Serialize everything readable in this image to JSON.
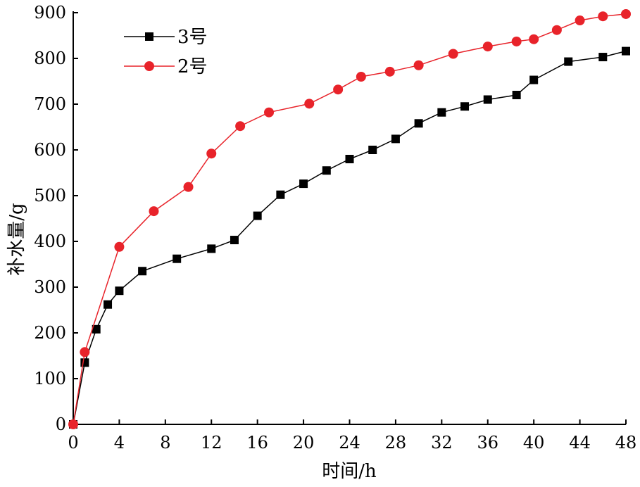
{
  "chart_data": {
    "type": "line",
    "xlabel": "时间/h",
    "ylabel": "补水量/g",
    "xlim": [
      0,
      48
    ],
    "ylim": [
      0,
      900
    ],
    "xticks": [
      0,
      4,
      8,
      12,
      16,
      20,
      24,
      28,
      32,
      36,
      40,
      44,
      48
    ],
    "yticks": [
      0,
      100,
      200,
      300,
      400,
      500,
      600,
      700,
      800,
      900
    ],
    "grid": false,
    "legend": "top-left",
    "series": [
      {
        "name": "3号",
        "color": "#000000",
        "marker": "square",
        "x": [
          0,
          1,
          2,
          3,
          4,
          6,
          9,
          12,
          14,
          16,
          18,
          20,
          22,
          24,
          26,
          28,
          30,
          32,
          34,
          36,
          38.5,
          40,
          43,
          46,
          48
        ],
        "y": [
          0,
          135,
          208,
          262,
          292,
          335,
          362,
          384,
          403,
          456,
          502,
          526,
          555,
          580,
          600,
          624,
          658,
          682,
          695,
          710,
          720,
          753,
          793,
          803,
          816
        ]
      },
      {
        "name": "2号",
        "color": "#e8232a",
        "marker": "circle",
        "x": [
          0,
          1,
          4,
          7,
          10,
          12,
          14.5,
          17,
          20.5,
          23,
          25,
          27.5,
          30,
          33,
          36,
          38.5,
          40,
          42,
          44,
          46,
          48
        ],
        "y": [
          0,
          158,
          388,
          466,
          519,
          592,
          652,
          682,
          701,
          732,
          760,
          771,
          785,
          810,
          826,
          837,
          842,
          862,
          883,
          892,
          897
        ]
      }
    ]
  }
}
